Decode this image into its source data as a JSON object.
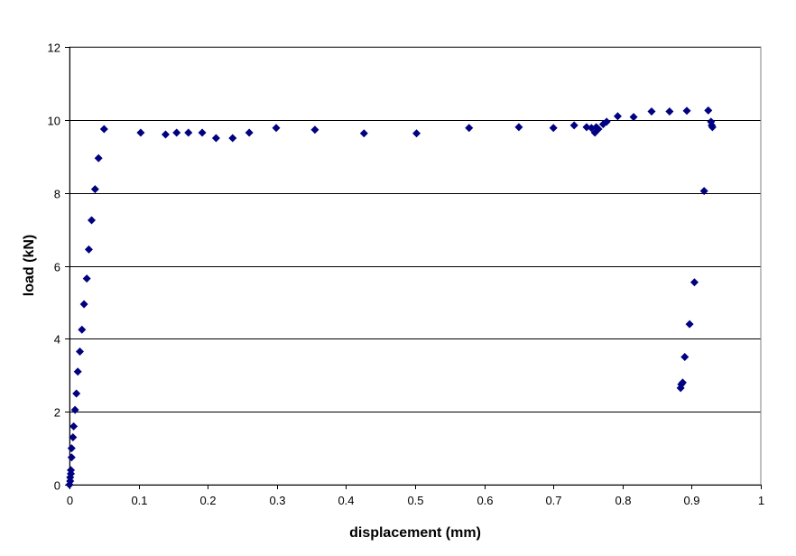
{
  "chart_data": {
    "type": "scatter",
    "title": "",
    "xlabel": "displacement (mm)",
    "ylabel": "load (kN)",
    "xlim": [
      0,
      1
    ],
    "ylim": [
      0,
      12
    ],
    "xticks": [
      "0",
      "0.1",
      "0.2",
      "0.3",
      "0.4",
      "0.5",
      "0.6",
      "0.7",
      "0.8",
      "0.9",
      "1"
    ],
    "yticks": [
      "0",
      "2",
      "4",
      "6",
      "8",
      "10",
      "12"
    ],
    "grid": "horizontal",
    "legend": "none",
    "marker": "diamond",
    "color": "#000080",
    "points": [
      [
        0.0,
        0.0
      ],
      [
        0.001,
        0.1
      ],
      [
        0.001,
        0.2
      ],
      [
        0.002,
        0.3
      ],
      [
        0.002,
        0.4
      ],
      [
        0.003,
        0.75
      ],
      [
        0.003,
        1.0
      ],
      [
        0.005,
        1.3
      ],
      [
        0.006,
        1.6
      ],
      [
        0.008,
        2.05
      ],
      [
        0.01,
        2.5
      ],
      [
        0.012,
        3.1
      ],
      [
        0.015,
        3.65
      ],
      [
        0.018,
        4.25
      ],
      [
        0.021,
        4.95
      ],
      [
        0.025,
        5.65
      ],
      [
        0.028,
        6.45
      ],
      [
        0.032,
        7.25
      ],
      [
        0.037,
        8.1
      ],
      [
        0.042,
        8.95
      ],
      [
        0.05,
        9.75
      ],
      [
        0.103,
        9.65
      ],
      [
        0.139,
        9.6
      ],
      [
        0.155,
        9.65
      ],
      [
        0.172,
        9.65
      ],
      [
        0.192,
        9.65
      ],
      [
        0.212,
        9.5
      ],
      [
        0.236,
        9.5
      ],
      [
        0.26,
        9.65
      ],
      [
        0.299,
        9.78
      ],
      [
        0.355,
        9.73
      ],
      [
        0.426,
        9.63
      ],
      [
        0.502,
        9.63
      ],
      [
        0.578,
        9.78
      ],
      [
        0.65,
        9.8
      ],
      [
        0.7,
        9.78
      ],
      [
        0.73,
        9.85
      ],
      [
        0.748,
        9.8
      ],
      [
        0.755,
        9.78
      ],
      [
        0.76,
        9.65
      ],
      [
        0.762,
        9.8
      ],
      [
        0.765,
        9.75
      ],
      [
        0.772,
        9.88
      ],
      [
        0.777,
        9.95
      ],
      [
        0.793,
        10.1
      ],
      [
        0.816,
        10.08
      ],
      [
        0.842,
        10.23
      ],
      [
        0.868,
        10.23
      ],
      [
        0.893,
        10.25
      ],
      [
        0.924,
        10.26
      ],
      [
        0.928,
        9.95
      ],
      [
        0.93,
        9.8
      ],
      [
        0.929,
        9.85
      ],
      [
        0.918,
        8.05
      ],
      [
        0.904,
        5.55
      ],
      [
        0.897,
        4.4
      ],
      [
        0.89,
        3.5
      ],
      [
        0.887,
        2.8
      ],
      [
        0.885,
        2.75
      ],
      [
        0.884,
        2.65
      ]
    ]
  }
}
